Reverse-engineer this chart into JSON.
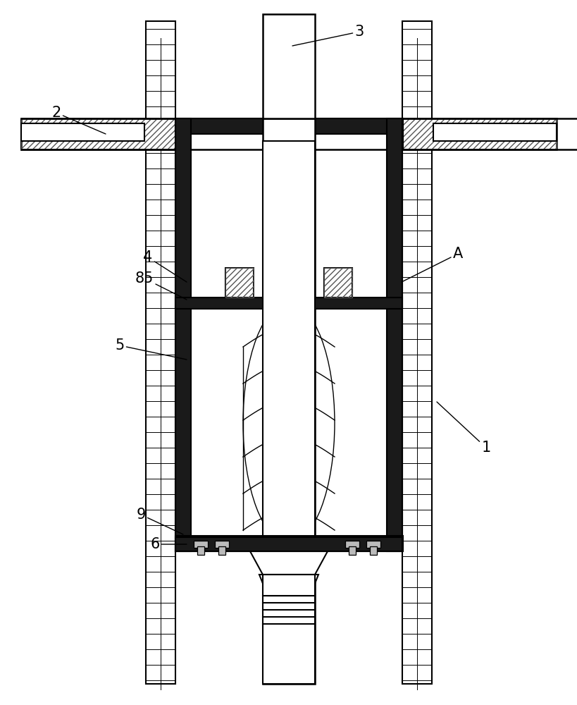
{
  "bg_color": "#ffffff",
  "line_color": "#000000",
  "dark_fill": "#1a1a1a",
  "gray_fill": "#888888",
  "light_fill": "#dddddd",
  "figsize": [
    8.2,
    10.0
  ],
  "dpi": 100,
  "lw_main": 1.8,
  "lw_thin": 1.0,
  "lw_thick": 3.0,
  "fs_label": 15
}
